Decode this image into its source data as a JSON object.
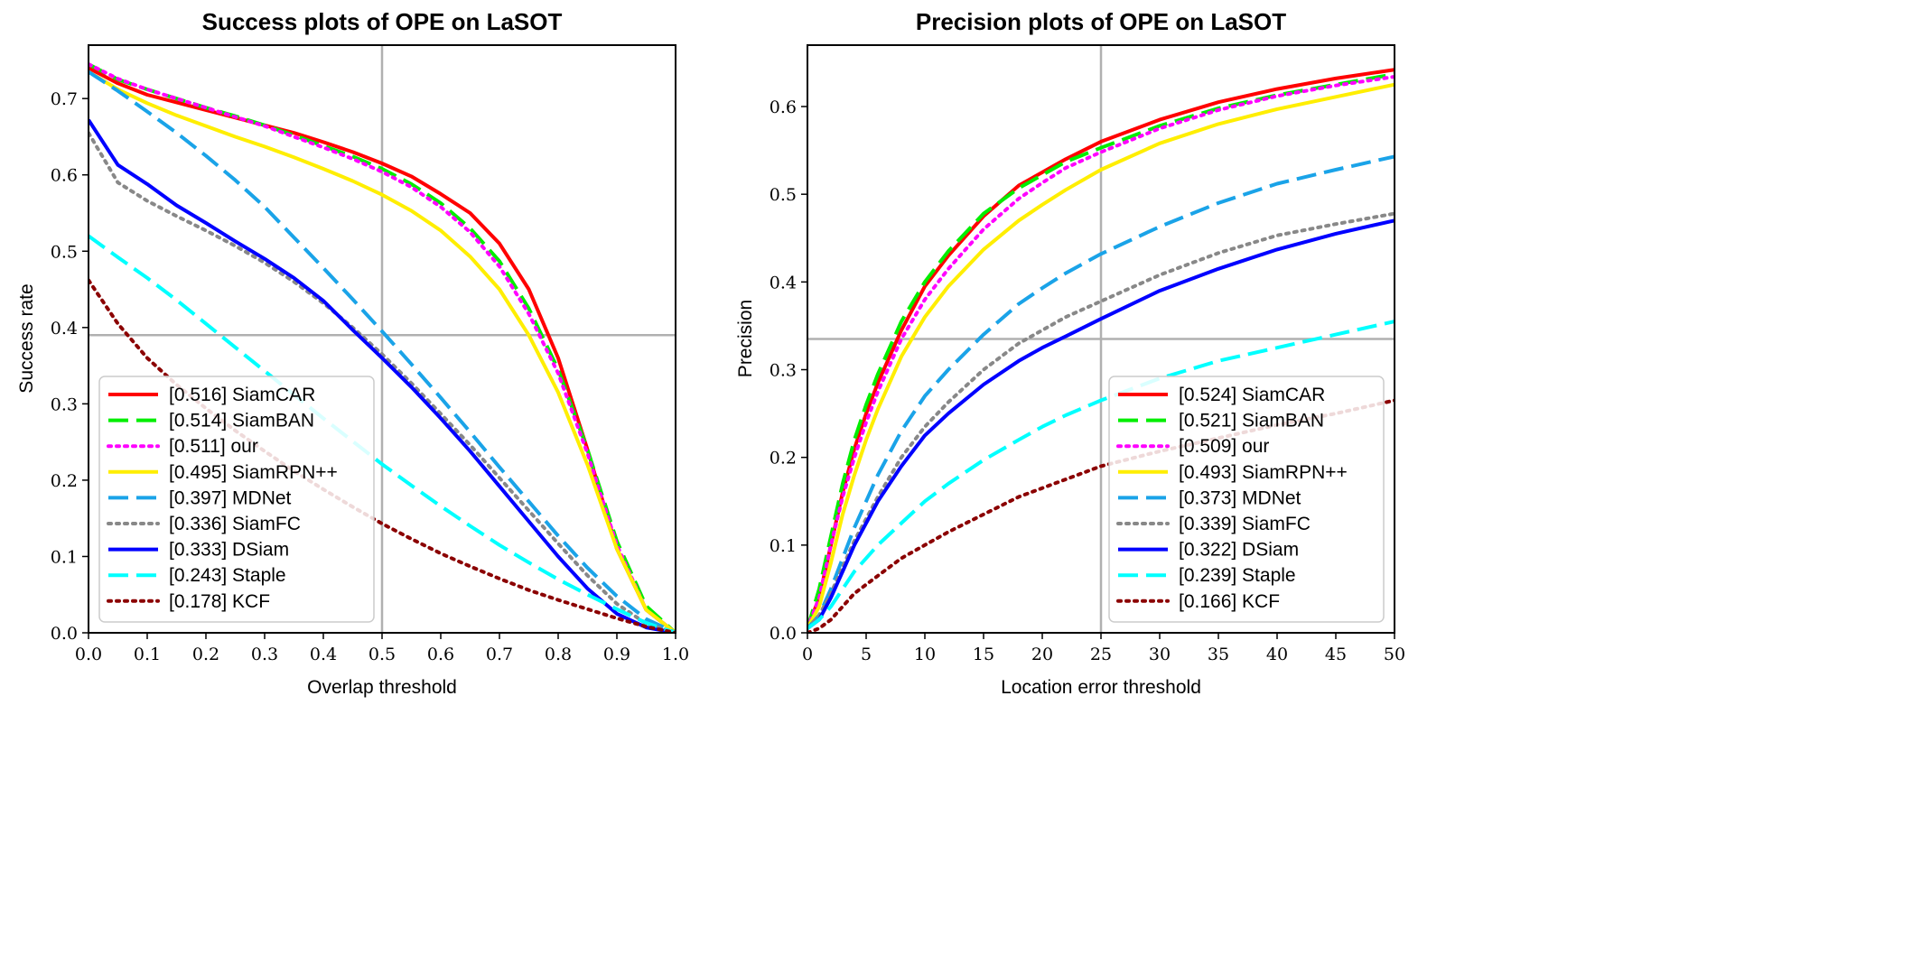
{
  "chart_data": [
    {
      "type": "line",
      "title": "Success plots of OPE on LaSOT",
      "xlabel": "Overlap threshold",
      "ylabel": "Success rate",
      "xlim": [
        0.0,
        1.0
      ],
      "ylim": [
        0.0,
        0.77
      ],
      "xticks": [
        "0.0",
        "0.1",
        "0.2",
        "0.3",
        "0.4",
        "0.5",
        "0.6",
        "0.7",
        "0.8",
        "0.9",
        "1.0"
      ],
      "xtick_values": [
        0,
        0.1,
        0.2,
        0.3,
        0.4,
        0.5,
        0.6,
        0.7,
        0.8,
        0.9,
        1.0
      ],
      "yticks": [
        "0.0",
        "0.1",
        "0.2",
        "0.3",
        "0.4",
        "0.5",
        "0.6",
        "0.7"
      ],
      "ytick_values": [
        0,
        0.1,
        0.2,
        0.3,
        0.4,
        0.5,
        0.6,
        0.7
      ],
      "ref_lines": {
        "x": 0.5,
        "y": 0.39
      },
      "legend_position": "bottom-left",
      "x": [
        0,
        0.05,
        0.1,
        0.15,
        0.2,
        0.25,
        0.3,
        0.35,
        0.4,
        0.45,
        0.5,
        0.55,
        0.6,
        0.65,
        0.7,
        0.75,
        0.8,
        0.85,
        0.9,
        0.95,
        1.0
      ],
      "series": [
        {
          "name": "[0.516] SiamCAR",
          "color": "#ff0000",
          "style": "solid",
          "values": [
            0.74,
            0.72,
            0.705,
            0.695,
            0.685,
            0.675,
            0.665,
            0.655,
            0.643,
            0.63,
            0.615,
            0.598,
            0.575,
            0.55,
            0.51,
            0.45,
            0.36,
            0.24,
            0.11,
            0.03,
            0.0
          ]
        },
        {
          "name": "[0.514] SiamBAN",
          "color": "#00ee00",
          "style": "dashed",
          "values": [
            0.745,
            0.725,
            0.712,
            0.7,
            0.688,
            0.677,
            0.665,
            0.652,
            0.638,
            0.624,
            0.608,
            0.588,
            0.563,
            0.53,
            0.487,
            0.425,
            0.345,
            0.24,
            0.12,
            0.035,
            0.0
          ]
        },
        {
          "name": "[0.511] our",
          "color": "#ff00ff",
          "style": "dotted",
          "values": [
            0.745,
            0.726,
            0.712,
            0.7,
            0.688,
            0.676,
            0.664,
            0.65,
            0.636,
            0.621,
            0.604,
            0.584,
            0.558,
            0.525,
            0.48,
            0.418,
            0.34,
            0.235,
            0.115,
            0.03,
            0.0
          ]
        },
        {
          "name": "[0.495] SiamRPN++",
          "color": "#ffee00",
          "style": "solid",
          "values": [
            0.735,
            0.712,
            0.694,
            0.678,
            0.664,
            0.65,
            0.637,
            0.623,
            0.608,
            0.592,
            0.574,
            0.553,
            0.527,
            0.493,
            0.45,
            0.39,
            0.315,
            0.22,
            0.11,
            0.03,
            0.0
          ]
        },
        {
          "name": "[0.397] MDNet",
          "color": "#1aa3e8",
          "style": "dashed",
          "values": [
            0.735,
            0.71,
            0.683,
            0.655,
            0.625,
            0.593,
            0.558,
            0.518,
            0.478,
            0.437,
            0.395,
            0.352,
            0.308,
            0.263,
            0.217,
            0.172,
            0.127,
            0.085,
            0.048,
            0.018,
            0.0
          ]
        },
        {
          "name": "[0.336] SiamFC",
          "color": "#888888",
          "style": "dotted",
          "values": [
            0.655,
            0.59,
            0.566,
            0.546,
            0.527,
            0.507,
            0.485,
            0.46,
            0.432,
            0.4,
            0.365,
            0.327,
            0.287,
            0.246,
            0.203,
            0.16,
            0.117,
            0.075,
            0.038,
            0.012,
            0.0
          ]
        },
        {
          "name": "[0.333] DSiam",
          "color": "#0000ff",
          "style": "solid",
          "values": [
            0.672,
            0.613,
            0.588,
            0.56,
            0.537,
            0.513,
            0.49,
            0.465,
            0.435,
            0.397,
            0.36,
            0.322,
            0.281,
            0.238,
            0.192,
            0.146,
            0.1,
            0.058,
            0.025,
            0.007,
            0.0
          ]
        },
        {
          "name": "[0.243] Staple",
          "color": "#00ffff",
          "style": "dashed",
          "values": [
            0.52,
            0.492,
            0.465,
            0.436,
            0.405,
            0.374,
            0.343,
            0.312,
            0.281,
            0.251,
            0.221,
            0.193,
            0.166,
            0.14,
            0.115,
            0.092,
            0.07,
            0.05,
            0.031,
            0.013,
            0.0
          ]
        },
        {
          "name": "[0.178] KCF",
          "color": "#8b0000",
          "style": "dotted",
          "values": [
            0.462,
            0.405,
            0.36,
            0.325,
            0.294,
            0.265,
            0.238,
            0.212,
            0.188,
            0.165,
            0.143,
            0.123,
            0.104,
            0.087,
            0.071,
            0.056,
            0.043,
            0.031,
            0.019,
            0.008,
            0.0
          ]
        }
      ]
    },
    {
      "type": "line",
      "title": "Precision plots of OPE on LaSOT",
      "xlabel": "Location error threshold",
      "ylabel": "Precision",
      "xlim": [
        0,
        50
      ],
      "ylim": [
        0.0,
        0.67
      ],
      "xticks": [
        "0",
        "5",
        "10",
        "15",
        "20",
        "25",
        "30",
        "35",
        "40",
        "45",
        "50"
      ],
      "xtick_values": [
        0,
        5,
        10,
        15,
        20,
        25,
        30,
        35,
        40,
        45,
        50
      ],
      "yticks": [
        "0.0",
        "0.1",
        "0.2",
        "0.3",
        "0.4",
        "0.5",
        "0.6"
      ],
      "ytick_values": [
        0,
        0.1,
        0.2,
        0.3,
        0.4,
        0.5,
        0.6
      ],
      "ref_lines": {
        "x": 25,
        "y": 0.335
      },
      "legend_position": "bottom-right",
      "x": [
        0,
        1,
        2,
        3,
        4,
        5,
        6,
        8,
        10,
        12,
        15,
        18,
        20,
        22,
        25,
        30,
        35,
        40,
        45,
        50
      ],
      "series": [
        {
          "name": "[0.524] SiamCAR",
          "color": "#ff0000",
          "style": "solid",
          "values": [
            0.005,
            0.04,
            0.1,
            0.16,
            0.21,
            0.25,
            0.285,
            0.345,
            0.395,
            0.43,
            0.475,
            0.51,
            0.525,
            0.54,
            0.56,
            0.585,
            0.605,
            0.62,
            0.632,
            0.642
          ]
        },
        {
          "name": "[0.521] SiamBAN",
          "color": "#00ee00",
          "style": "dashed",
          "values": [
            0.005,
            0.05,
            0.11,
            0.17,
            0.22,
            0.26,
            0.295,
            0.355,
            0.4,
            0.435,
            0.478,
            0.507,
            0.522,
            0.537,
            0.553,
            0.578,
            0.598,
            0.613,
            0.625,
            0.637
          ]
        },
        {
          "name": "[0.509] our",
          "color": "#ff00ff",
          "style": "dotted",
          "values": [
            0.005,
            0.04,
            0.1,
            0.155,
            0.2,
            0.24,
            0.275,
            0.335,
            0.38,
            0.415,
            0.46,
            0.495,
            0.513,
            0.53,
            0.548,
            0.575,
            0.596,
            0.612,
            0.624,
            0.634
          ]
        },
        {
          "name": "[0.493] SiamRPN++",
          "color": "#ffee00",
          "style": "solid",
          "values": [
            0.005,
            0.03,
            0.08,
            0.135,
            0.18,
            0.22,
            0.255,
            0.315,
            0.36,
            0.395,
            0.437,
            0.47,
            0.488,
            0.505,
            0.528,
            0.558,
            0.58,
            0.597,
            0.611,
            0.625
          ]
        },
        {
          "name": "[0.373] MDNet",
          "color": "#1aa3e8",
          "style": "dashed",
          "values": [
            0.005,
            0.02,
            0.05,
            0.085,
            0.12,
            0.15,
            0.18,
            0.23,
            0.27,
            0.3,
            0.34,
            0.375,
            0.393,
            0.41,
            0.432,
            0.463,
            0.49,
            0.512,
            0.528,
            0.543
          ]
        },
        {
          "name": "[0.339] SiamFC",
          "color": "#888888",
          "style": "dotted",
          "values": [
            0.005,
            0.02,
            0.045,
            0.075,
            0.105,
            0.13,
            0.155,
            0.2,
            0.235,
            0.263,
            0.3,
            0.33,
            0.345,
            0.36,
            0.378,
            0.408,
            0.433,
            0.453,
            0.466,
            0.478
          ]
        },
        {
          "name": "[0.322] DSiam",
          "color": "#0000ff",
          "style": "solid",
          "values": [
            0.005,
            0.015,
            0.04,
            0.07,
            0.1,
            0.125,
            0.15,
            0.19,
            0.225,
            0.25,
            0.283,
            0.31,
            0.325,
            0.338,
            0.358,
            0.39,
            0.415,
            0.437,
            0.455,
            0.47
          ]
        },
        {
          "name": "[0.239] Staple",
          "color": "#00ffff",
          "style": "dashed",
          "values": [
            0.005,
            0.015,
            0.03,
            0.05,
            0.07,
            0.085,
            0.1,
            0.125,
            0.15,
            0.17,
            0.197,
            0.22,
            0.235,
            0.248,
            0.265,
            0.29,
            0.31,
            0.325,
            0.34,
            0.355
          ]
        },
        {
          "name": "[0.166] KCF",
          "color": "#8b0000",
          "style": "dotted",
          "values": [
            0.0,
            0.005,
            0.015,
            0.03,
            0.045,
            0.055,
            0.065,
            0.085,
            0.1,
            0.115,
            0.135,
            0.155,
            0.165,
            0.175,
            0.19,
            0.207,
            0.222,
            0.237,
            0.25,
            0.265
          ]
        }
      ]
    }
  ]
}
